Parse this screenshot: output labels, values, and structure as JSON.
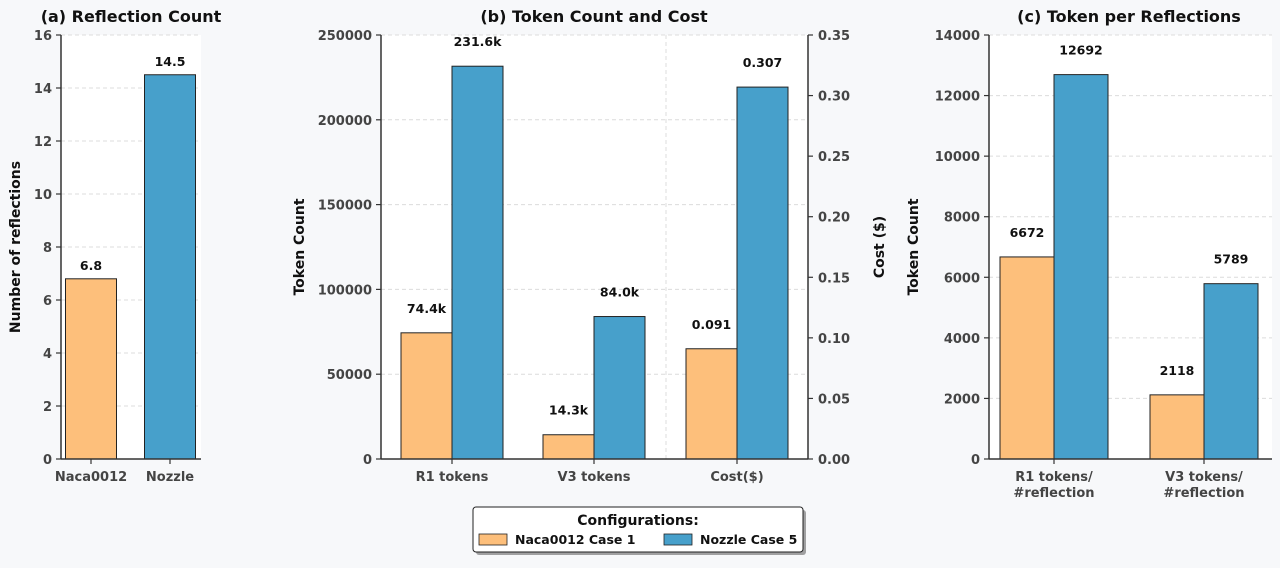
{
  "colors": {
    "naca": "#fdbf7b",
    "nozzle": "#47a0cb",
    "grid": "#dcdcdc",
    "axis": "#333333",
    "bar_edge": "#222222"
  },
  "legend": {
    "title": "Configurations:",
    "items": [
      {
        "label": "Naca0012 Case 1",
        "color_key": "naca"
      },
      {
        "label": "Nozzle Case 5",
        "color_key": "nozzle"
      }
    ]
  },
  "chart_data": [
    {
      "id": "a",
      "type": "bar",
      "title": "(a) Reflection Count",
      "ylabel": "Number of reflections",
      "ylim": [
        0,
        16
      ],
      "yticks": [
        0,
        2,
        4,
        6,
        8,
        10,
        12,
        14,
        16
      ],
      "ytick_labels": [
        "0",
        "2",
        "4",
        "6",
        "8",
        "10",
        "12",
        "14",
        "16"
      ],
      "categories": [
        "Naca0012",
        "Nozzle"
      ],
      "bars": [
        {
          "category_index": 0,
          "series": "Naca0012 Case 1",
          "value": 6.8,
          "label": "6.8"
        },
        {
          "category_index": 1,
          "series": "Nozzle Case 5",
          "value": 14.5,
          "label": "14.5"
        }
      ]
    },
    {
      "id": "b",
      "type": "bar",
      "title": "(b) Token Count and Cost",
      "ylabel": "Token Count",
      "ylabel_right": "Cost ($)",
      "ylim": [
        0,
        250000
      ],
      "yticks": [
        0,
        50000,
        100000,
        150000,
        200000,
        250000
      ],
      "ytick_labels": [
        "0",
        "50000",
        "100000",
        "150000",
        "200000",
        "250000"
      ],
      "ylim_right": [
        0,
        0.35
      ],
      "yticks_right": [
        0,
        0.05,
        0.1,
        0.15,
        0.2,
        0.25,
        0.3,
        0.35
      ],
      "ytick_labels_right": [
        "0.00",
        "0.05",
        "0.10",
        "0.15",
        "0.20",
        "0.25",
        "0.30",
        "0.35"
      ],
      "categories": [
        "R1 tokens",
        "V3 tokens",
        "Cost($)"
      ],
      "series": [
        {
          "name": "Naca0012 Case 1",
          "values": [
            74400,
            14300,
            0.091
          ],
          "labels": [
            "74.4k",
            "14.3k",
            "0.091"
          ]
        },
        {
          "name": "Nozzle Case 5",
          "values": [
            231600,
            84000,
            0.307
          ],
          "labels": [
            "231.6k",
            "84.0k",
            "0.307"
          ]
        }
      ],
      "right_axis_categories": [
        2
      ]
    },
    {
      "id": "c",
      "type": "bar",
      "title": "(c) Token per Reflections",
      "ylabel": "Token Count",
      "ylim": [
        0,
        14000
      ],
      "yticks": [
        0,
        2000,
        4000,
        6000,
        8000,
        10000,
        12000,
        14000
      ],
      "ytick_labels": [
        "0",
        "2000",
        "4000",
        "6000",
        "8000",
        "10000",
        "12000",
        "14000"
      ],
      "categories": [
        "R1 tokens/\n#reflection",
        "V3 tokens/\n#reflection"
      ],
      "series": [
        {
          "name": "Naca0012 Case 1",
          "values": [
            6672,
            2118
          ],
          "labels": [
            "6672",
            "2118"
          ]
        },
        {
          "name": "Nozzle Case 5",
          "values": [
            12692,
            5789
          ],
          "labels": [
            "12692",
            "5789"
          ]
        }
      ]
    }
  ]
}
